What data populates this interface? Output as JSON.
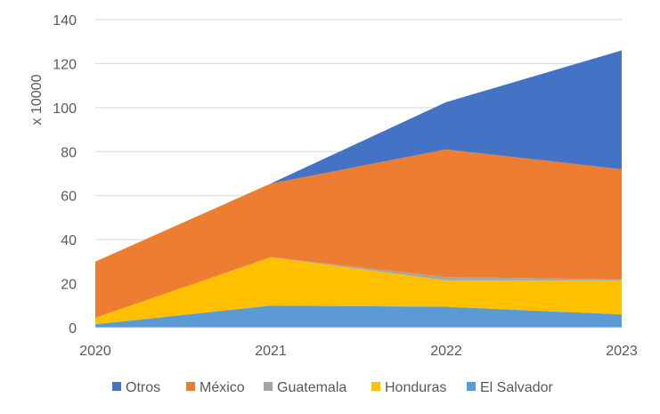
{
  "chart_data": {
    "type": "area",
    "stacked": true,
    "title": "",
    "xlabel": "",
    "ylabel": "x 10000",
    "ylim": [
      0,
      140
    ],
    "y_ticks": [
      "0",
      "20",
      "40",
      "60",
      "80",
      "100",
      "120",
      "140"
    ],
    "categories": [
      "2020",
      "2021",
      "2022",
      "2023"
    ],
    "series": [
      {
        "name": "El Salvador",
        "color": "#5B9BD5",
        "values": [
          1.5,
          10,
          9.5,
          6
        ]
      },
      {
        "name": "Honduras",
        "color": "#FFC000",
        "values": [
          3,
          22,
          12,
          15.5
        ]
      },
      {
        "name": "Guatemala",
        "color": "#A5A5A5",
        "values": [
          0,
          0,
          1.5,
          0.5
        ]
      },
      {
        "name": "México",
        "color": "#ED7D31",
        "values": [
          25.5,
          33.5,
          58,
          50
        ]
      },
      {
        "name": "Otros",
        "color": "#4472C4",
        "values": [
          0,
          0,
          21.5,
          54
        ]
      }
    ],
    "legend": [
      "Otros",
      "México",
      "Guatemala",
      "Honduras",
      "El Salvador"
    ],
    "legend_position": "bottom",
    "grid": true
  }
}
